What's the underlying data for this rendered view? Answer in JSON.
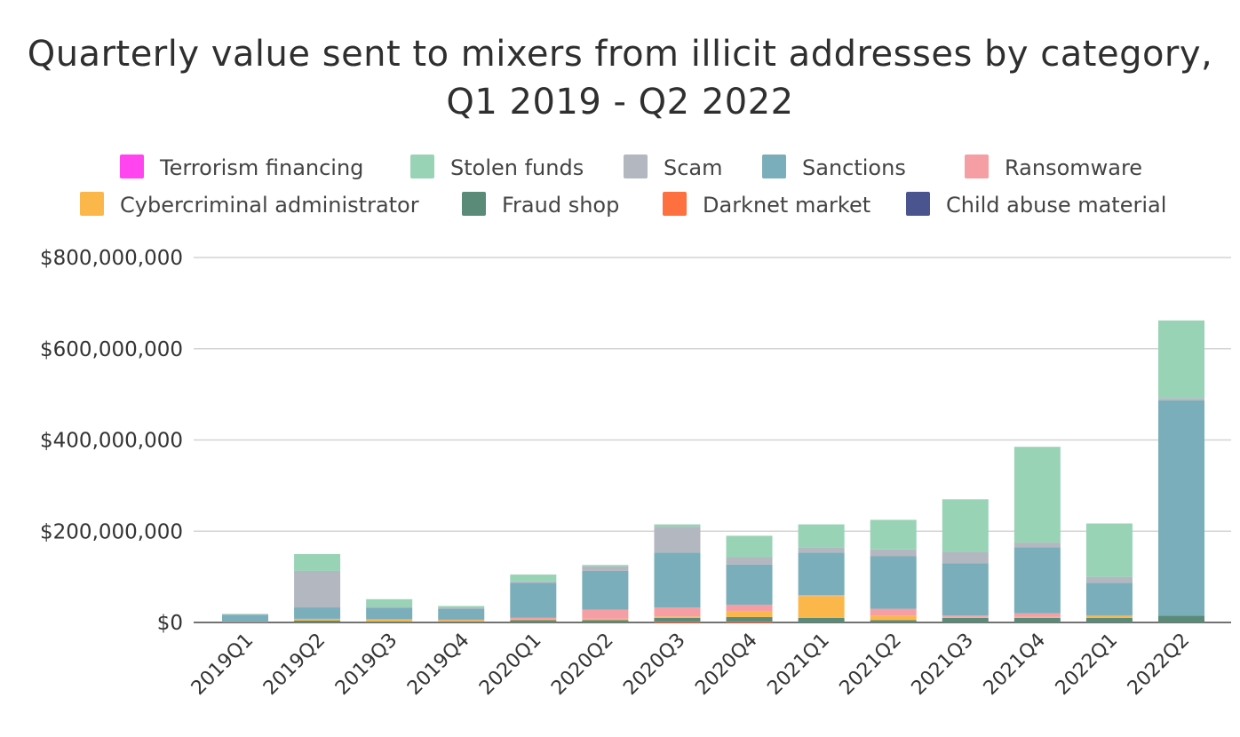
{
  "title_line1": "Quarterly value sent to mixers from illicit addresses by category,",
  "title_line2": "Q1 2019 - Q2 2022",
  "chart_data": {
    "type": "bar",
    "stacked": true,
    "title": "Quarterly value sent to mixers from illicit addresses by category, Q1 2019 - Q2 2022",
    "xlabel": "",
    "ylabel": "",
    "ylim": [
      0,
      800000000
    ],
    "yticks": [
      0,
      200000000,
      400000000,
      600000000,
      800000000
    ],
    "ytick_labels": [
      "$0",
      "$200,000,000",
      "$400,000,000",
      "$600,000,000",
      "$800,000,000"
    ],
    "grid": "horizontal",
    "legend_position": "top",
    "categories": [
      "2019Q1",
      "2019Q2",
      "2019Q3",
      "2019Q4",
      "2020Q1",
      "2020Q2",
      "2020Q3",
      "2020Q4",
      "2021Q1",
      "2021Q2",
      "2021Q3",
      "2021Q4",
      "2022Q1",
      "2022Q2"
    ],
    "series": [
      {
        "name": "Child abuse material",
        "color": "#4a5590",
        "values": [
          0,
          0,
          0,
          0,
          0,
          0,
          0,
          0,
          0,
          0,
          0,
          0,
          0,
          0
        ]
      },
      {
        "name": "Darknet market",
        "color": "#ff7040",
        "values": [
          0,
          0,
          0,
          0,
          0,
          0,
          2000000,
          2000000,
          0,
          0,
          0,
          0,
          0,
          0
        ]
      },
      {
        "name": "Fraud shop",
        "color": "#5a8a78",
        "values": [
          1000000,
          4000000,
          2000000,
          2000000,
          5000000,
          5000000,
          8000000,
          10000000,
          10000000,
          5000000,
          10000000,
          10000000,
          10000000,
          15000000
        ]
      },
      {
        "name": "Cybercriminal administrator",
        "color": "#fbb74a",
        "values": [
          0,
          2000000,
          4000000,
          3000000,
          2000000,
          3000000,
          3000000,
          12000000,
          48000000,
          10000000,
          2000000,
          2000000,
          5000000,
          0
        ]
      },
      {
        "name": "Ransomware",
        "color": "#f59fa4",
        "values": [
          1000000,
          2000000,
          1000000,
          1000000,
          3000000,
          20000000,
          20000000,
          15000000,
          2000000,
          15000000,
          3000000,
          8000000,
          0,
          0
        ]
      },
      {
        "name": "Sanctions",
        "color": "#7aaeba",
        "values": [
          15000000,
          25000000,
          25000000,
          24000000,
          77000000,
          85000000,
          120000000,
          88000000,
          93000000,
          115000000,
          115000000,
          145000000,
          72000000,
          472000000
        ]
      },
      {
        "name": "Scam",
        "color": "#b2b7c0",
        "values": [
          1000000,
          80000000,
          2000000,
          2000000,
          3000000,
          10000000,
          57000000,
          16000000,
          12000000,
          15000000,
          25000000,
          10000000,
          13000000,
          5000000
        ]
      },
      {
        "name": "Stolen funds",
        "color": "#99d3b6",
        "values": [
          1000000,
          37000000,
          17000000,
          4000000,
          15000000,
          3000000,
          5000000,
          47000000,
          50000000,
          65000000,
          115000000,
          210000000,
          117000000,
          170000000
        ]
      },
      {
        "name": "Terrorism financing",
        "color": "#ff44f0",
        "values": [
          0,
          0,
          0,
          0,
          0,
          0,
          0,
          0,
          0,
          0,
          0,
          0,
          0,
          0
        ]
      }
    ],
    "legend_order": [
      "Terrorism financing",
      "Stolen funds",
      "Scam",
      "Sanctions",
      "Ransomware",
      "Cybercriminal administrator",
      "Fraud shop",
      "Darknet market",
      "Child abuse material"
    ]
  }
}
